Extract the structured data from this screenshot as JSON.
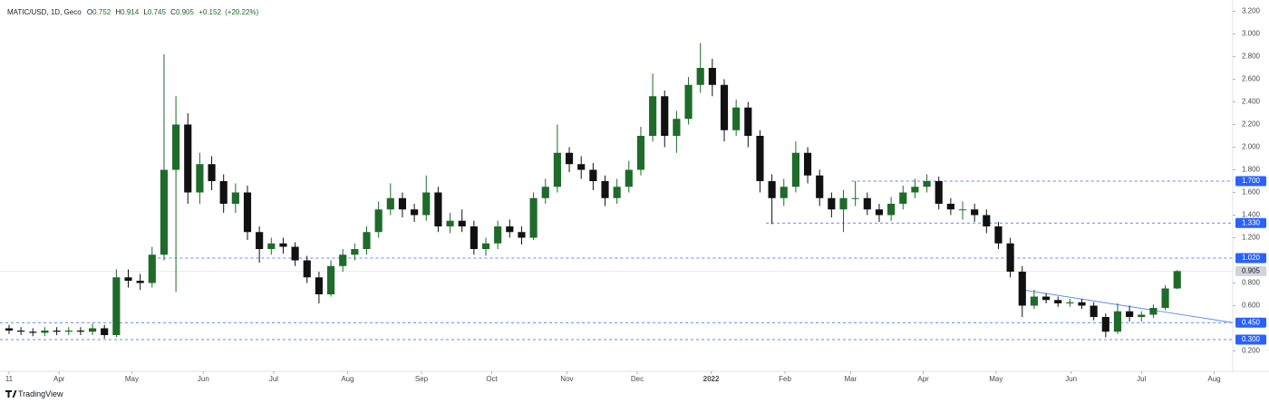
{
  "chart_data": {
    "type": "candlestick",
    "header": {
      "symbol": "MATIC/USD, 1D, Geco",
      "o": "O",
      "open": 0.752,
      "h": "H",
      "high": 0.914,
      "l": "L",
      "low": 0.745,
      "c": "C",
      "close": 0.905,
      "change": "+0.152",
      "change_pct": "(+20.22%)"
    },
    "brand": "TradingView",
    "up_color": "#1e6b2a",
    "down_color": "#111111",
    "categories": [
      null,
      null,
      null,
      null,
      null,
      null,
      null,
      null,
      null,
      null,
      null,
      null,
      null,
      null,
      null,
      null,
      null,
      null,
      null,
      null,
      null,
      null,
      null,
      null,
      null,
      null,
      null,
      null,
      null,
      null,
      null,
      null,
      null,
      null,
      null,
      null,
      null,
      null,
      null,
      null,
      null,
      null,
      null,
      null,
      null,
      null,
      null,
      null,
      null,
      null,
      null,
      null,
      null,
      null,
      null,
      null,
      null,
      null,
      null,
      null,
      null,
      null,
      null,
      null,
      null,
      null,
      null,
      null,
      null,
      null,
      null,
      null,
      null,
      null,
      null,
      null,
      null,
      null,
      null,
      null,
      null,
      null,
      null,
      null,
      null,
      null,
      null,
      null,
      null,
      null,
      null,
      null,
      null,
      null,
      null,
      null,
      null,
      null,
      null
    ],
    "open": [
      0.4,
      0.38,
      0.37,
      0.36,
      0.38,
      0.37,
      0.38,
      0.37,
      0.4,
      0.34,
      0.85,
      0.82,
      0.8,
      1.05,
      1.8,
      2.2,
      1.6,
      1.85,
      1.7,
      1.5,
      1.6,
      1.25,
      1.1,
      1.15,
      1.12,
      1.0,
      0.85,
      0.7,
      0.95,
      1.05,
      1.1,
      1.25,
      1.45,
      1.55,
      1.45,
      1.4,
      1.6,
      1.3,
      1.35,
      1.3,
      1.1,
      1.15,
      1.3,
      1.25,
      1.2,
      1.55,
      1.65,
      1.95,
      1.85,
      1.8,
      1.7,
      1.55,
      1.65,
      1.8,
      2.1,
      2.45,
      2.1,
      2.25,
      2.55,
      2.7,
      2.55,
      2.15,
      2.35,
      2.1,
      1.7,
      1.55,
      1.65,
      1.95,
      1.75,
      1.55,
      1.45,
      1.55,
      1.55,
      1.45,
      1.4,
      1.5,
      1.6,
      1.65,
      1.7,
      1.5,
      1.45,
      1.45,
      1.4,
      1.3,
      1.15,
      0.9,
      0.6,
      0.68,
      0.65,
      0.62,
      0.63,
      0.6,
      0.5,
      0.37,
      0.55,
      0.5,
      0.52,
      0.58,
      0.752
    ],
    "high": [
      0.43,
      0.41,
      0.4,
      0.41,
      0.41,
      0.41,
      0.41,
      0.44,
      0.43,
      0.92,
      0.92,
      0.88,
      1.12,
      2.82,
      2.45,
      2.3,
      1.95,
      1.92,
      1.76,
      1.68,
      1.66,
      1.3,
      1.2,
      1.2,
      1.16,
      1.04,
      0.9,
      1.0,
      1.1,
      1.15,
      1.3,
      1.52,
      1.68,
      1.6,
      1.5,
      1.75,
      1.65,
      1.42,
      1.45,
      1.35,
      1.2,
      1.35,
      1.36,
      1.3,
      1.6,
      1.72,
      2.2,
      2.0,
      1.92,
      1.86,
      1.75,
      1.72,
      1.88,
      2.18,
      2.65,
      2.5,
      2.32,
      2.62,
      2.92,
      2.78,
      2.6,
      2.42,
      2.4,
      2.15,
      1.76,
      1.72,
      2.05,
      2.0,
      1.8,
      1.6,
      1.62,
      1.7,
      1.6,
      1.5,
      1.56,
      1.66,
      1.72,
      1.76,
      1.74,
      1.55,
      1.52,
      1.5,
      1.45,
      1.34,
      1.2,
      0.95,
      0.74,
      0.71,
      0.68,
      0.66,
      0.66,
      0.63,
      0.53,
      0.62,
      0.6,
      0.55,
      0.61,
      0.78,
      0.914
    ],
    "low": [
      0.35,
      0.34,
      0.33,
      0.33,
      0.34,
      0.34,
      0.34,
      0.34,
      0.31,
      0.32,
      0.76,
      0.74,
      0.76,
      1.0,
      0.72,
      1.5,
      1.5,
      1.62,
      1.42,
      1.42,
      1.18,
      0.98,
      1.05,
      1.06,
      0.95,
      0.8,
      0.62,
      0.68,
      0.9,
      1.0,
      1.05,
      1.2,
      1.4,
      1.38,
      1.34,
      1.35,
      1.25,
      1.24,
      1.25,
      1.05,
      1.04,
      1.1,
      1.2,
      1.14,
      1.18,
      1.5,
      1.6,
      1.78,
      1.72,
      1.62,
      1.48,
      1.5,
      1.6,
      1.75,
      2.05,
      2.0,
      1.95,
      2.2,
      2.48,
      2.45,
      2.05,
      2.1,
      2.0,
      1.6,
      1.32,
      1.48,
      1.6,
      1.68,
      1.48,
      1.38,
      1.25,
      1.48,
      1.4,
      1.34,
      1.35,
      1.45,
      1.55,
      1.6,
      1.45,
      1.4,
      1.36,
      1.34,
      1.24,
      1.1,
      0.85,
      0.5,
      0.57,
      0.62,
      0.59,
      0.59,
      0.57,
      0.47,
      0.32,
      0.35,
      0.46,
      0.46,
      0.49,
      0.56,
      0.745
    ],
    "close": [
      0.38,
      0.37,
      0.36,
      0.38,
      0.37,
      0.38,
      0.37,
      0.4,
      0.34,
      0.85,
      0.82,
      0.8,
      1.05,
      1.8,
      2.2,
      1.6,
      1.85,
      1.7,
      1.5,
      1.6,
      1.25,
      1.1,
      1.15,
      1.12,
      1.0,
      0.85,
      0.7,
      0.95,
      1.05,
      1.1,
      1.25,
      1.45,
      1.55,
      1.45,
      1.4,
      1.6,
      1.3,
      1.35,
      1.3,
      1.1,
      1.15,
      1.3,
      1.25,
      1.2,
      1.55,
      1.65,
      1.95,
      1.85,
      1.8,
      1.7,
      1.55,
      1.65,
      1.8,
      2.1,
      2.45,
      2.1,
      2.25,
      2.55,
      2.7,
      2.55,
      2.15,
      2.35,
      2.1,
      1.7,
      1.55,
      1.65,
      1.95,
      1.75,
      1.55,
      1.45,
      1.55,
      1.55,
      1.45,
      1.4,
      1.5,
      1.6,
      1.65,
      1.7,
      1.5,
      1.45,
      1.45,
      1.4,
      1.3,
      1.15,
      0.9,
      0.6,
      0.68,
      0.65,
      0.62,
      0.63,
      0.6,
      0.5,
      0.37,
      0.55,
      0.5,
      0.52,
      0.58,
      0.752,
      0.905
    ],
    "xlim": [
      -0.76,
      102.66
    ],
    "xticks": [
      {
        "value": 0,
        "label": "11"
      },
      {
        "value": 4.2,
        "label": "Apr"
      },
      {
        "value": 10.3,
        "label": "May"
      },
      {
        "value": 16.3,
        "label": "Jun"
      },
      {
        "value": 22.2,
        "label": "Jul"
      },
      {
        "value": 28.4,
        "label": "Aug"
      },
      {
        "value": 34.6,
        "label": "Sep"
      },
      {
        "value": 40.5,
        "label": "Oct"
      },
      {
        "value": 46.8,
        "label": "Nov"
      },
      {
        "value": 52.7,
        "label": "Dec"
      },
      {
        "value": 58.9,
        "label": "2022"
      },
      {
        "value": 65.1,
        "label": "Feb"
      },
      {
        "value": 70.6,
        "label": "Mar"
      },
      {
        "value": 76.7,
        "label": "Apr"
      },
      {
        "value": 82.8,
        "label": "May"
      },
      {
        "value": 89.1,
        "label": "Jun"
      },
      {
        "value": 95.0,
        "label": "Jul"
      },
      {
        "value": 101.1,
        "label": "Aug"
      }
    ],
    "ylim": [
      0.02,
      3.3
    ],
    "yticks": [
      {
        "value": 0.2,
        "label": "0.200"
      },
      {
        "value": 0.6,
        "label": "0.600"
      },
      {
        "value": 0.8,
        "label": "0.800"
      },
      {
        "value": 1.2,
        "label": "1.200"
      },
      {
        "value": 1.4,
        "label": "1.400"
      },
      {
        "value": 1.6,
        "label": "1.600"
      },
      {
        "value": 1.8,
        "label": "1.800"
      },
      {
        "value": 2.0,
        "label": "2.000"
      },
      {
        "value": 2.2,
        "label": "2.200"
      },
      {
        "value": 2.4,
        "label": "2.400"
      },
      {
        "value": 2.6,
        "label": "2.600"
      },
      {
        "value": 2.8,
        "label": "2.800"
      },
      {
        "value": 3.0,
        "label": "3.000"
      },
      {
        "value": 3.2,
        "label": "3.200"
      }
    ],
    "levels": [
      {
        "value": 1.7,
        "label": "1.700",
        "x_start": 70.7,
        "color": "#2962ff"
      },
      {
        "value": 1.33,
        "label": "1.330",
        "x_start": 63.5,
        "color": "#2962ff"
      },
      {
        "value": 1.02,
        "label": "1.020",
        "x_start": 12.5,
        "color": "#2962ff"
      },
      {
        "value": 0.45,
        "label": "0.450",
        "x_start": -0.76,
        "color": "#2962ff"
      },
      {
        "value": 0.3,
        "label": "0.300",
        "x_start": -0.76,
        "color": "#2962ff"
      }
    ],
    "last_price": {
      "value": 0.905,
      "label": "0.905"
    },
    "trendline": {
      "x": [
        85,
        102.66
      ],
      "y": [
        0.74,
        0.45
      ],
      "color": "#5b8def"
    }
  }
}
